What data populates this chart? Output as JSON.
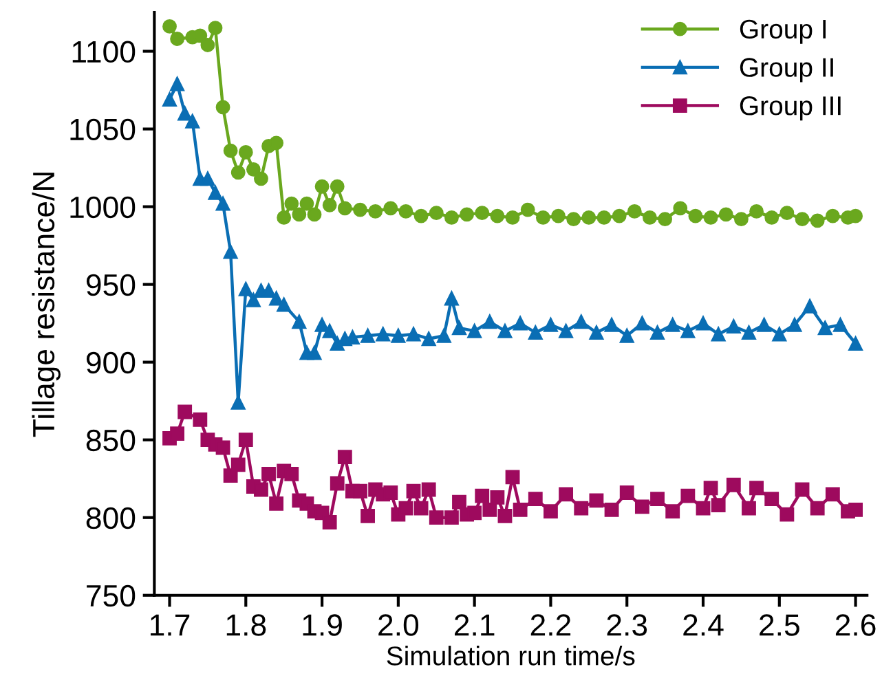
{
  "chart_data": {
    "type": "line",
    "xlabel": "Simulation run time/s",
    "ylabel": "Tillage resistance/N",
    "xlim": [
      1.68,
      2.615
    ],
    "xticks": [
      {
        "value": 1.7,
        "label": "1.7"
      },
      {
        "value": 1.8,
        "label": "1.8"
      },
      {
        "value": 1.9,
        "label": "1.9"
      },
      {
        "value": 2.0,
        "label": "2.0"
      },
      {
        "value": 2.1,
        "label": "2.1"
      },
      {
        "value": 2.2,
        "label": "2.2"
      },
      {
        "value": 2.3,
        "label": "2.3"
      },
      {
        "value": 2.4,
        "label": "2.4"
      },
      {
        "value": 2.5,
        "label": "2.5"
      },
      {
        "value": 2.6,
        "label": "2.6"
      }
    ],
    "ylim": [
      750,
      1125
    ],
    "yticks": [
      750,
      800,
      850,
      900,
      950,
      1000,
      1050,
      1100
    ],
    "grid": false,
    "legend": "top right",
    "line_style": "solid",
    "series": [
      {
        "name": "Group I",
        "color": "#6aa81e",
        "marker": "circle",
        "x": [
          1.7,
          1.71,
          1.73,
          1.74,
          1.75,
          1.76,
          1.77,
          1.78,
          1.79,
          1.8,
          1.81,
          1.82,
          1.83,
          1.84,
          1.85,
          1.86,
          1.87,
          1.88,
          1.89,
          1.9,
          1.91,
          1.92,
          1.93,
          1.95,
          1.97,
          1.99,
          2.01,
          2.03,
          2.05,
          2.07,
          2.09,
          2.11,
          2.13,
          2.15,
          2.17,
          2.19,
          2.21,
          2.23,
          2.25,
          2.27,
          2.29,
          2.31,
          2.33,
          2.35,
          2.37,
          2.39,
          2.41,
          2.43,
          2.45,
          2.47,
          2.49,
          2.51,
          2.53,
          2.55,
          2.57,
          2.59,
          2.6
        ],
        "values": [
          1116,
          1108,
          1109,
          1110,
          1104,
          1115,
          1064,
          1036,
          1022,
          1035,
          1024,
          1018,
          1039,
          1041,
          993,
          1002,
          995,
          1002,
          995,
          1013,
          1001,
          1013,
          999,
          998,
          997,
          999,
          997,
          994,
          996,
          993,
          995,
          996,
          994,
          993,
          998,
          993,
          994,
          992,
          993,
          993,
          994,
          997,
          993,
          992,
          999,
          994,
          993,
          995,
          992,
          997,
          993,
          996,
          992,
          991,
          994,
          993,
          994
        ]
      },
      {
        "name": "Group II",
        "color": "#0a6eb4",
        "marker": "triangle",
        "x": [
          1.7,
          1.71,
          1.72,
          1.73,
          1.74,
          1.75,
          1.76,
          1.77,
          1.78,
          1.79,
          1.8,
          1.81,
          1.82,
          1.83,
          1.84,
          1.85,
          1.87,
          1.88,
          1.89,
          1.9,
          1.91,
          1.92,
          1.93,
          1.94,
          1.96,
          1.98,
          2.0,
          2.02,
          2.04,
          2.06,
          2.07,
          2.08,
          2.1,
          2.12,
          2.14,
          2.16,
          2.18,
          2.2,
          2.22,
          2.24,
          2.26,
          2.28,
          2.3,
          2.32,
          2.34,
          2.36,
          2.38,
          2.4,
          2.42,
          2.44,
          2.46,
          2.48,
          2.5,
          2.52,
          2.54,
          2.56,
          2.58,
          2.6
        ],
        "values": [
          1069,
          1079,
          1060,
          1055,
          1018,
          1018,
          1009,
          1002,
          971,
          874,
          947,
          940,
          946,
          946,
          941,
          937,
          926,
          906,
          906,
          924,
          920,
          912,
          915,
          916,
          917,
          918,
          917,
          918,
          915,
          917,
          941,
          922,
          920,
          926,
          920,
          925,
          919,
          924,
          920,
          926,
          919,
          924,
          917,
          925,
          919,
          924,
          920,
          925,
          918,
          923,
          919,
          924,
          918,
          924,
          936,
          922,
          924,
          912
        ]
      },
      {
        "name": "Group III",
        "color": "#9e0a5e",
        "marker": "square",
        "x": [
          1.7,
          1.71,
          1.72,
          1.74,
          1.75,
          1.76,
          1.77,
          1.78,
          1.79,
          1.8,
          1.81,
          1.82,
          1.83,
          1.84,
          1.85,
          1.86,
          1.87,
          1.88,
          1.89,
          1.9,
          1.91,
          1.92,
          1.93,
          1.94,
          1.95,
          1.96,
          1.97,
          1.98,
          1.99,
          2.0,
          2.01,
          2.02,
          2.03,
          2.04,
          2.05,
          2.07,
          2.08,
          2.09,
          2.1,
          2.11,
          2.12,
          2.13,
          2.14,
          2.15,
          2.16,
          2.18,
          2.2,
          2.22,
          2.24,
          2.26,
          2.28,
          2.3,
          2.32,
          2.34,
          2.36,
          2.38,
          2.4,
          2.41,
          2.42,
          2.44,
          2.46,
          2.47,
          2.49,
          2.51,
          2.53,
          2.55,
          2.57,
          2.59,
          2.6
        ],
        "values": [
          851,
          854,
          868,
          863,
          850,
          847,
          845,
          827,
          834,
          850,
          820,
          818,
          828,
          809,
          830,
          828,
          811,
          809,
          804,
          803,
          797,
          822,
          839,
          817,
          817,
          801,
          818,
          815,
          816,
          802,
          806,
          817,
          806,
          818,
          800,
          800,
          810,
          802,
          803,
          814,
          805,
          813,
          801,
          826,
          805,
          812,
          804,
          815,
          806,
          811,
          805,
          816,
          807,
          812,
          804,
          814,
          806,
          819,
          808,
          821,
          806,
          819,
          812,
          802,
          818,
          806,
          815,
          804,
          805
        ]
      }
    ]
  }
}
